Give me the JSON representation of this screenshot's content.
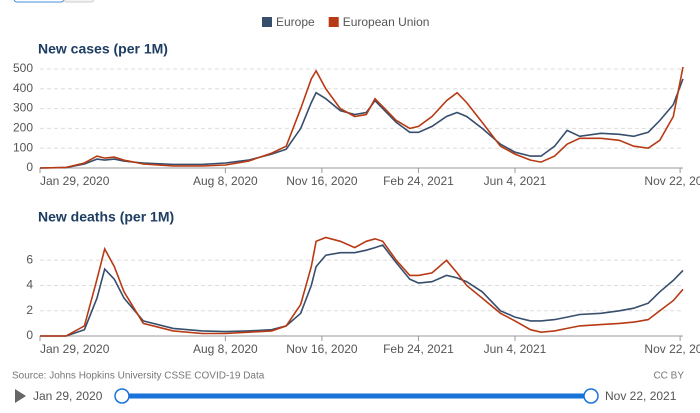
{
  "chart_data": [
    {
      "type": "line",
      "title": "New cases (per 1M)",
      "x": [
        "2020-01-29",
        "2020-02-25",
        "2020-03-15",
        "2020-03-28",
        "2020-04-05",
        "2020-04-15",
        "2020-04-25",
        "2020-05-15",
        "2020-06-15",
        "2020-07-15",
        "2020-08-08",
        "2020-09-01",
        "2020-09-25",
        "2020-10-10",
        "2020-10-25",
        "2020-11-05",
        "2020-11-10",
        "2020-11-20",
        "2020-12-05",
        "2020-12-20",
        "2021-01-01",
        "2021-01-10",
        "2021-01-18",
        "2021-02-01",
        "2021-02-15",
        "2021-02-24",
        "2021-03-10",
        "2021-03-25",
        "2021-04-05",
        "2021-04-15",
        "2021-05-01",
        "2021-05-20",
        "2021-06-04",
        "2021-06-20",
        "2021-07-01",
        "2021-07-15",
        "2021-07-28",
        "2021-08-10",
        "2021-09-01",
        "2021-09-20",
        "2021-10-05",
        "2021-10-20",
        "2021-11-01",
        "2021-11-15",
        "2021-11-25"
      ],
      "series": [
        {
          "name": "Europe",
          "color": "#374e6c",
          "values": [
            0,
            2,
            20,
            45,
            40,
            45,
            35,
            25,
            18,
            18,
            25,
            40,
            70,
            95,
            200,
            330,
            380,
            350,
            290,
            270,
            280,
            340,
            300,
            230,
            180,
            180,
            210,
            260,
            280,
            260,
            200,
            120,
            80,
            60,
            60,
            110,
            190,
            160,
            175,
            170,
            160,
            180,
            240,
            320,
            450
          ]
        },
        {
          "name": "European Union",
          "color": "#b83a14",
          "values": [
            0,
            3,
            25,
            60,
            50,
            55,
            40,
            20,
            10,
            10,
            15,
            35,
            75,
            110,
            300,
            450,
            490,
            400,
            300,
            260,
            270,
            350,
            310,
            240,
            200,
            210,
            260,
            340,
            380,
            330,
            230,
            110,
            70,
            40,
            30,
            60,
            120,
            150,
            150,
            140,
            110,
            100,
            140,
            260,
            510
          ]
        }
      ],
      "xlim": [
        "2020-01-29",
        "2021-11-25"
      ],
      "xticks": [
        {
          "value": "2020-01-29",
          "label": "Jan 29, 2020"
        },
        {
          "value": "2020-08-08",
          "label": "Aug 8, 2020"
        },
        {
          "value": "2020-11-16",
          "label": "Nov 16, 2020"
        },
        {
          "value": "2021-02-24",
          "label": "Feb 24, 2021"
        },
        {
          "value": "2021-06-04",
          "label": "Jun 4, 2021"
        },
        {
          "value": "2021-11-22",
          "label": "Nov 22, 2021"
        }
      ],
      "ylim": [
        0,
        520
      ],
      "yticks": [
        0,
        100,
        200,
        300,
        400,
        500
      ],
      "grid": true
    },
    {
      "type": "line",
      "title": "New deaths (per 1M)",
      "x": [
        "2020-01-29",
        "2020-02-25",
        "2020-03-15",
        "2020-03-28",
        "2020-04-05",
        "2020-04-15",
        "2020-04-25",
        "2020-05-15",
        "2020-06-15",
        "2020-07-15",
        "2020-08-08",
        "2020-09-01",
        "2020-09-25",
        "2020-10-10",
        "2020-10-25",
        "2020-11-05",
        "2020-11-10",
        "2020-11-20",
        "2020-12-05",
        "2020-12-20",
        "2021-01-01",
        "2021-01-10",
        "2021-01-18",
        "2021-02-01",
        "2021-02-15",
        "2021-02-24",
        "2021-03-10",
        "2021-03-25",
        "2021-04-05",
        "2021-04-15",
        "2021-05-01",
        "2021-05-20",
        "2021-06-04",
        "2021-06-20",
        "2021-07-01",
        "2021-07-15",
        "2021-07-28",
        "2021-08-10",
        "2021-09-01",
        "2021-09-20",
        "2021-10-05",
        "2021-10-20",
        "2021-11-01",
        "2021-11-15",
        "2021-11-25"
      ],
      "series": [
        {
          "name": "Europe",
          "color": "#374e6c",
          "values": [
            0,
            0,
            0.5,
            3,
            5.3,
            4.5,
            3,
            1.2,
            0.6,
            0.4,
            0.35,
            0.4,
            0.5,
            0.8,
            1.8,
            4,
            5.5,
            6.4,
            6.6,
            6.6,
            6.8,
            7,
            7.2,
            5.8,
            4.5,
            4.2,
            4.3,
            4.8,
            4.6,
            4.3,
            3.5,
            2,
            1.5,
            1.2,
            1.2,
            1.3,
            1.5,
            1.7,
            1.8,
            2,
            2.2,
            2.6,
            3.5,
            4.4,
            5.2
          ]
        },
        {
          "name": "European Union",
          "color": "#b83a14",
          "values": [
            0,
            0,
            0.8,
            4.5,
            6.9,
            5.5,
            3.5,
            1,
            0.4,
            0.2,
            0.2,
            0.3,
            0.4,
            0.8,
            2.5,
            5.5,
            7.5,
            7.8,
            7.5,
            7,
            7.5,
            7.7,
            7.5,
            6,
            4.8,
            4.8,
            5,
            6,
            5,
            4,
            3,
            1.8,
            1.2,
            0.5,
            0.3,
            0.4,
            0.6,
            0.8,
            0.9,
            1,
            1.1,
            1.3,
            2,
            2.8,
            3.7
          ]
        }
      ],
      "xlim": [
        "2020-01-29",
        "2021-11-25"
      ],
      "xticks": [
        {
          "value": "2020-01-29",
          "label": "Jan 29, 2020"
        },
        {
          "value": "2020-08-08",
          "label": "Aug 8, 2020"
        },
        {
          "value": "2020-11-16",
          "label": "Nov 16, 2020"
        },
        {
          "value": "2021-02-24",
          "label": "Feb 24, 2021"
        },
        {
          "value": "2021-06-04",
          "label": "Jun 4, 2021"
        },
        {
          "value": "2021-11-22",
          "label": "Nov 22, 2021"
        }
      ],
      "ylim": [
        0,
        8
      ],
      "yticks": [
        0,
        2,
        4,
        6
      ],
      "grid": true
    }
  ],
  "source": "Source: Johns Hopkins University CSSE COVID-19 Data",
  "license": "CC BY",
  "slider": {
    "start": "Jan 29, 2020",
    "end": "Nov 22, 2021"
  }
}
